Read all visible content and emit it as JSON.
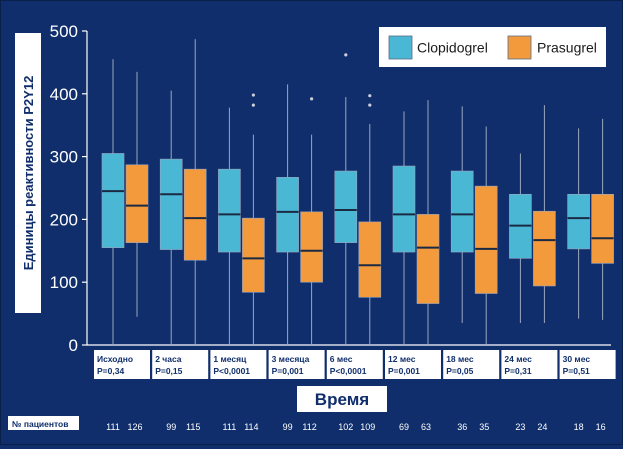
{
  "chart_data": {
    "type": "box",
    "ylabel": "Единицы реактивности P2Y12",
    "xlabel": "Время",
    "ylim": [
      0,
      500
    ],
    "yticks": [
      0,
      100,
      200,
      300,
      400,
      500
    ],
    "patients_label": "№ пациентов",
    "legend": [
      {
        "name": "Clopidogrel",
        "color": "#4ab8d4"
      },
      {
        "name": "Prasugrel",
        "color": "#f39a3c"
      }
    ],
    "colors": {
      "clopidogrel": "#4ab8d4",
      "prasugrel": "#f39a3c",
      "background": "#0f2e6b"
    },
    "groups": [
      {
        "label": "Исходно",
        "p": "P=0,34",
        "clopidogrel": {
          "whisker_low": 0,
          "q1": 155,
          "median": 245,
          "q3": 305,
          "whisker_high": 455,
          "outliers": []
        },
        "prasugrel": {
          "whisker_low": 45,
          "q1": 163,
          "median": 222,
          "q3": 287,
          "whisker_high": 435,
          "outliers": []
        },
        "n": [
          "111",
          "126"
        ]
      },
      {
        "label": "2 часа",
        "p": "P=0,15",
        "clopidogrel": {
          "whisker_low": 0,
          "q1": 152,
          "median": 240,
          "q3": 296,
          "whisker_high": 405,
          "outliers": []
        },
        "prasugrel": {
          "whisker_low": 0,
          "q1": 135,
          "median": 202,
          "q3": 280,
          "whisker_high": 487,
          "outliers": []
        },
        "n": [
          "99",
          "115"
        ]
      },
      {
        "label": "1 месяц",
        "p": "P<0,0001",
        "clopidogrel": {
          "whisker_low": 0,
          "q1": 148,
          "median": 208,
          "q3": 280,
          "whisker_high": 378,
          "outliers": []
        },
        "prasugrel": {
          "whisker_low": 0,
          "q1": 84,
          "median": 138,
          "q3": 202,
          "whisker_high": 335,
          "outliers": [
            382,
            398
          ]
        },
        "n": [
          "111",
          "114"
        ]
      },
      {
        "label": "3 месяца",
        "p": "P=0,001",
        "clopidogrel": {
          "whisker_low": 0,
          "q1": 148,
          "median": 212,
          "q3": 267,
          "whisker_high": 415,
          "outliers": []
        },
        "prasugrel": {
          "whisker_low": 0,
          "q1": 100,
          "median": 150,
          "q3": 212,
          "whisker_high": 335,
          "outliers": [
            392
          ]
        },
        "n": [
          "99",
          "112"
        ]
      },
      {
        "label": "6 мес",
        "p": "P<0,0001",
        "clopidogrel": {
          "whisker_low": 0,
          "q1": 163,
          "median": 215,
          "q3": 277,
          "whisker_high": 395,
          "outliers": [
            462
          ]
        },
        "prasugrel": {
          "whisker_low": 0,
          "q1": 76,
          "median": 127,
          "q3": 196,
          "whisker_high": 352,
          "outliers": [
            382,
            397
          ]
        },
        "n": [
          "102",
          "109"
        ]
      },
      {
        "label": "12 мес",
        "p": "P=0,001",
        "clopidogrel": {
          "whisker_low": 0,
          "q1": 148,
          "median": 208,
          "q3": 285,
          "whisker_high": 372,
          "outliers": []
        },
        "prasugrel": {
          "whisker_low": 0,
          "q1": 66,
          "median": 155,
          "q3": 208,
          "whisker_high": 390,
          "outliers": []
        },
        "n": [
          "69",
          "63"
        ]
      },
      {
        "label": "18 мес",
        "p": "P=0,05",
        "clopidogrel": {
          "whisker_low": 35,
          "q1": 148,
          "median": 208,
          "q3": 277,
          "whisker_high": 380,
          "outliers": []
        },
        "prasugrel": {
          "whisker_low": 0,
          "q1": 82,
          "median": 153,
          "q3": 253,
          "whisker_high": 348,
          "outliers": []
        },
        "n": [
          "36",
          "35"
        ]
      },
      {
        "label": "24 мес",
        "p": "P=0,31",
        "clopidogrel": {
          "whisker_low": 35,
          "q1": 138,
          "median": 190,
          "q3": 240,
          "whisker_high": 305,
          "outliers": []
        },
        "prasugrel": {
          "whisker_low": 35,
          "q1": 94,
          "median": 167,
          "q3": 213,
          "whisker_high": 382,
          "outliers": []
        },
        "n": [
          "23",
          "24"
        ]
      },
      {
        "label": "30 мес",
        "p": "P=0,51",
        "clopidogrel": {
          "whisker_low": 42,
          "q1": 153,
          "median": 202,
          "q3": 240,
          "whisker_high": 345,
          "outliers": []
        },
        "prasugrel": {
          "whisker_low": 40,
          "q1": 130,
          "median": 170,
          "q3": 240,
          "whisker_high": 360,
          "outliers": []
        },
        "n": [
          "18",
          "16"
        ]
      }
    ]
  }
}
